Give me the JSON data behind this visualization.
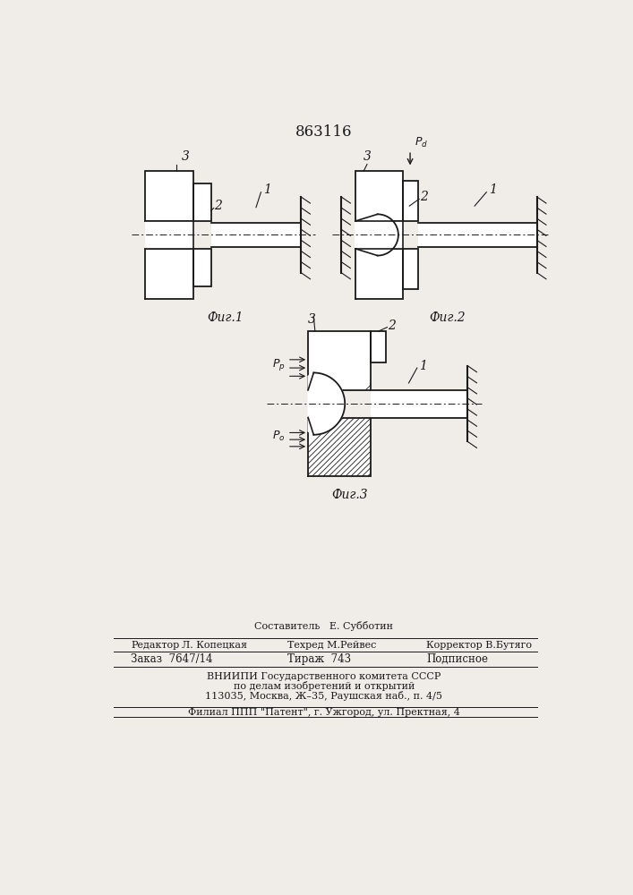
{
  "patent_number": "863116",
  "bg": "#f0ede8",
  "lc": "#1a1a1a",
  "fig1_caption": "Фиг.1",
  "fig2_caption": "Фиг.2",
  "fig3_caption": "Фиг.3",
  "footer": [
    [
      "Составитель",
      353,
      "center"
    ],
    [
      "Е. Субботин",
      440,
      "left"
    ],
    [
      "Редактор",
      80,
      "left"
    ],
    [
      "Л. Копецкая",
      150,
      "left"
    ],
    [
      "Техред М.Рейвес",
      320,
      "left"
    ],
    [
      "Корректор В.Бутяго",
      530,
      "left"
    ],
    [
      "Заказ  7647/14",
      80,
      "left"
    ],
    [
      "Тираж  743",
      310,
      "left"
    ],
    [
      "Подписное",
      530,
      "left"
    ],
    [
      "ВНИИПИ Государственного комитета СССР",
      353,
      "center"
    ],
    [
      "по делам изобретений и открытий",
      353,
      "center"
    ],
    [
      "113035, Москва, Ж–35, Раушская наб., п. 4/5",
      353,
      "center"
    ],
    [
      "Филиал ППП \"Патент\", г. Ужгород, ул. Пректная, 4",
      353,
      "center"
    ]
  ]
}
